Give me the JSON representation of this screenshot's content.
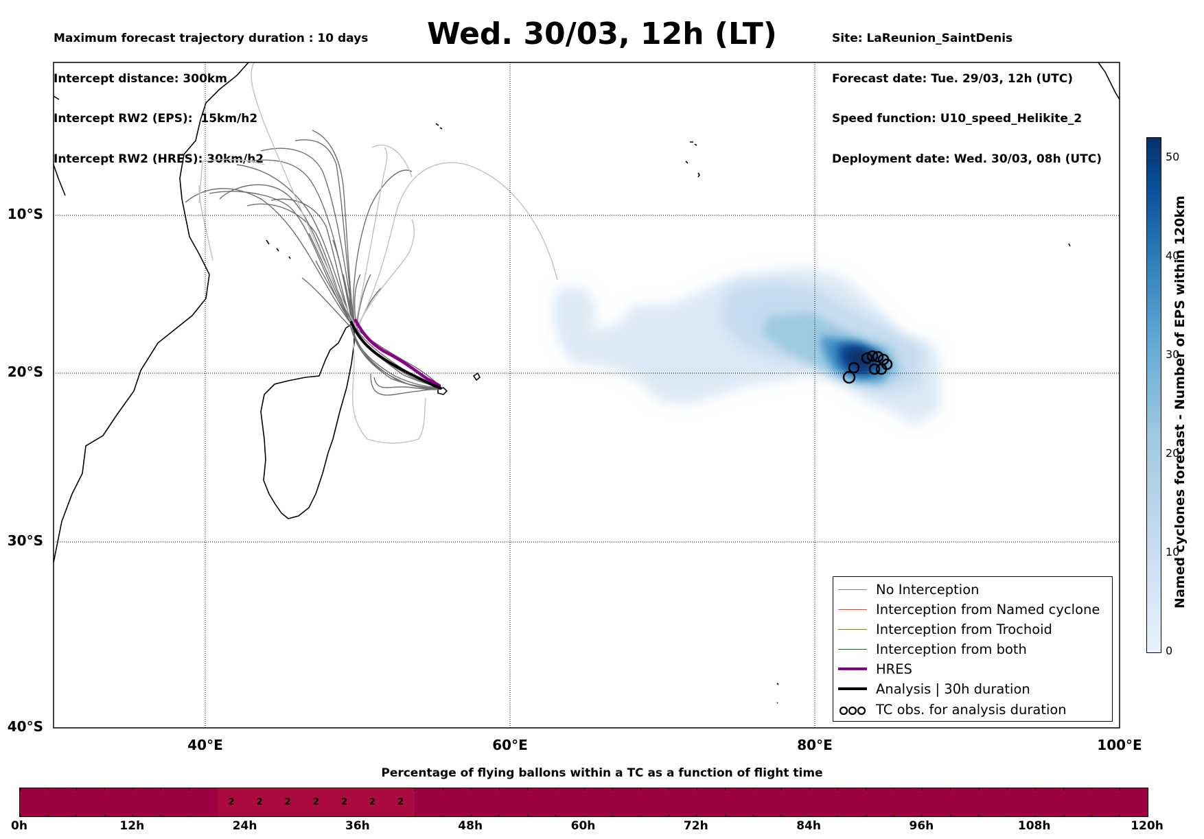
{
  "header_left": [
    "Maximum forecast trajectory duration : 10 days",
    "Intercept distance: 300km",
    "Intercept RW2 (EPS):  15km/h2",
    "Intercept RW2 (HRES): 30km/h2"
  ],
  "title": "Wed. 30/03, 12h (LT)",
  "header_right": [
    "Site: LaReunion_SaintDenis",
    "Forecast date: Tue. 29/03, 12h (UTC)",
    "Speed function: U10_speed_Helikite_2",
    "Deployment date: Wed. 30/03, 08h (UTC)"
  ],
  "map": {
    "lat_labels": [
      "10°S",
      "20°S",
      "30°S",
      "40°S"
    ],
    "lon_labels": [
      "40°E",
      "60°E",
      "80°E",
      "100°E"
    ],
    "colors": {
      "hres": "#8b008b",
      "analysis": "#000000",
      "no_interception": "#6e6e6e",
      "named_cyclone": "#ff4500",
      "trochoid": "#808000",
      "both": "#008000"
    }
  },
  "legend": [
    {
      "label": "No Interception",
      "color": "#808080",
      "width": 1.5,
      "type": "line"
    },
    {
      "label": "Interception from Named cyclone",
      "color": "#ff4500",
      "width": 1.5,
      "type": "line"
    },
    {
      "label": "Interception from Trochoid",
      "color": "#808000",
      "width": 1.5,
      "type": "line"
    },
    {
      "label": "Interception from both",
      "color": "#008000",
      "width": 1.5,
      "type": "line"
    },
    {
      "label": "HRES",
      "color": "#8b008b",
      "width": 4,
      "type": "line"
    },
    {
      "label": "Analysis | 30h duration",
      "color": "#000000",
      "width": 4,
      "type": "line"
    },
    {
      "label": "TC obs. for analysis duration",
      "color": "#000000",
      "type": "circles"
    }
  ],
  "colorbar": {
    "label": "Named cyclones forecast - Number of EPS within 120km",
    "ticks": [
      "0",
      "10",
      "20",
      "30",
      "40",
      "50"
    ],
    "max": 52
  },
  "timeline": {
    "title": "Percentage of flying ballons within a TC as a function of flight time",
    "labels": [
      "0h",
      "12h",
      "24h",
      "36h",
      "48h",
      "60h",
      "72h",
      "84h",
      "96h",
      "108h",
      "120h"
    ],
    "values_pct": [
      0,
      0,
      0,
      0,
      0,
      0,
      0,
      2,
      2,
      2,
      2,
      2,
      2,
      2,
      0,
      0,
      0,
      0,
      0,
      0,
      0,
      0,
      0,
      0,
      0,
      0,
      0,
      0,
      0,
      0,
      0,
      0,
      0,
      0,
      0,
      0,
      0,
      0,
      0,
      0
    ]
  }
}
